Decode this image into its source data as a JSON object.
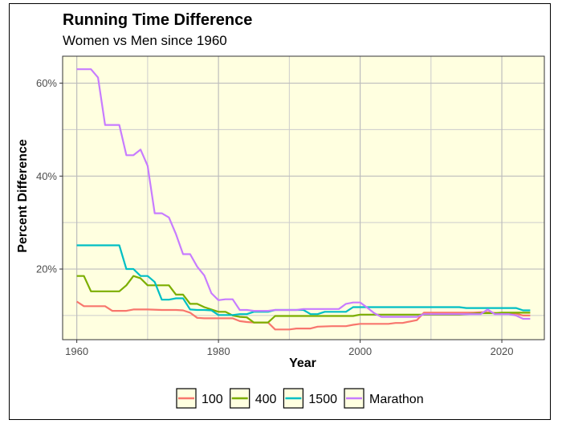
{
  "chart_data": {
    "type": "line",
    "title": "Running Time Difference",
    "subtitle": "Women vs Men since 1960",
    "xlabel": "Year",
    "ylabel": "Percent Difference",
    "xlim": [
      1958,
      2026
    ],
    "ylim": [
      0.048,
      0.658
    ],
    "x_ticks": [
      1960,
      1980,
      2000,
      2020
    ],
    "y_ticks": [
      0.2,
      0.4,
      0.6
    ],
    "y_tick_labels": [
      "20%",
      "40%",
      "60%"
    ],
    "y_minor_ticks": [
      0.1,
      0.3,
      0.5
    ],
    "panel_background": "#ffffe0",
    "grid": true,
    "legend_position": "bottom",
    "series": [
      {
        "name": "100",
        "color": "#f8766d",
        "points": [
          [
            1960,
            0.13
          ],
          [
            1961,
            0.12
          ],
          [
            1962,
            0.12
          ],
          [
            1963,
            0.12
          ],
          [
            1964,
            0.12
          ],
          [
            1965,
            0.11
          ],
          [
            1966,
            0.11
          ],
          [
            1967,
            0.11
          ],
          [
            1968,
            0.113
          ],
          [
            1969,
            0.113
          ],
          [
            1970,
            0.113
          ],
          [
            1972,
            0.112
          ],
          [
            1974,
            0.112
          ],
          [
            1975,
            0.111
          ],
          [
            1976,
            0.106
          ],
          [
            1977,
            0.095
          ],
          [
            1978,
            0.094
          ],
          [
            1980,
            0.094
          ],
          [
            1982,
            0.094
          ],
          [
            1983,
            0.088
          ],
          [
            1984,
            0.086
          ],
          [
            1985,
            0.085
          ],
          [
            1986,
            0.085
          ],
          [
            1987,
            0.085
          ],
          [
            1988,
            0.07
          ],
          [
            1990,
            0.07
          ],
          [
            1991,
            0.072
          ],
          [
            1993,
            0.072
          ],
          [
            1994,
            0.076
          ],
          [
            1996,
            0.077
          ],
          [
            1998,
            0.077
          ],
          [
            1999,
            0.08
          ],
          [
            2000,
            0.082
          ],
          [
            2004,
            0.082
          ],
          [
            2005,
            0.084
          ],
          [
            2006,
            0.084
          ],
          [
            2007,
            0.087
          ],
          [
            2008,
            0.09
          ],
          [
            2009,
            0.106
          ],
          [
            2010,
            0.106
          ],
          [
            2014,
            0.106
          ],
          [
            2016,
            0.106
          ],
          [
            2017,
            0.107
          ],
          [
            2018,
            0.107
          ],
          [
            2020,
            0.104
          ],
          [
            2022,
            0.104
          ],
          [
            2023,
            0.1
          ],
          [
            2024,
            0.1
          ]
        ]
      },
      {
        "name": "400",
        "color": "#7cae00",
        "points": [
          [
            1960,
            0.185
          ],
          [
            1961,
            0.185
          ],
          [
            1962,
            0.152
          ],
          [
            1963,
            0.152
          ],
          [
            1966,
            0.152
          ],
          [
            1967,
            0.165
          ],
          [
            1968,
            0.185
          ],
          [
            1969,
            0.18
          ],
          [
            1970,
            0.165
          ],
          [
            1973,
            0.165
          ],
          [
            1974,
            0.145
          ],
          [
            1975,
            0.145
          ],
          [
            1976,
            0.125
          ],
          [
            1977,
            0.125
          ],
          [
            1978,
            0.118
          ],
          [
            1979,
            0.113
          ],
          [
            1980,
            0.108
          ],
          [
            1981,
            0.108
          ],
          [
            1982,
            0.1
          ],
          [
            1983,
            0.097
          ],
          [
            1984,
            0.096
          ],
          [
            1985,
            0.085
          ],
          [
            1987,
            0.085
          ],
          [
            1988,
            0.099
          ],
          [
            1990,
            0.099
          ],
          [
            1995,
            0.099
          ],
          [
            1999,
            0.099
          ],
          [
            2000,
            0.102
          ],
          [
            2004,
            0.102
          ],
          [
            2010,
            0.102
          ],
          [
            2014,
            0.102
          ],
          [
            2017,
            0.105
          ],
          [
            2019,
            0.105
          ],
          [
            2020,
            0.106
          ],
          [
            2024,
            0.106
          ]
        ]
      },
      {
        "name": "1500",
        "color": "#00bfc4",
        "points": [
          [
            1960,
            0.251
          ],
          [
            1966,
            0.251
          ],
          [
            1967,
            0.2
          ],
          [
            1968,
            0.2
          ],
          [
            1969,
            0.185
          ],
          [
            1970,
            0.185
          ],
          [
            1971,
            0.172
          ],
          [
            1972,
            0.134
          ],
          [
            1973,
            0.134
          ],
          [
            1974,
            0.137
          ],
          [
            1975,
            0.137
          ],
          [
            1976,
            0.113
          ],
          [
            1977,
            0.112
          ],
          [
            1978,
            0.112
          ],
          [
            1979,
            0.111
          ],
          [
            1980,
            0.101
          ],
          [
            1982,
            0.101
          ],
          [
            1983,
            0.103
          ],
          [
            1984,
            0.103
          ],
          [
            1985,
            0.108
          ],
          [
            1987,
            0.108
          ],
          [
            1988,
            0.112
          ],
          [
            1992,
            0.112
          ],
          [
            1993,
            0.103
          ],
          [
            1994,
            0.103
          ],
          [
            1995,
            0.108
          ],
          [
            1998,
            0.108
          ],
          [
            1999,
            0.118
          ],
          [
            2000,
            0.118
          ],
          [
            2005,
            0.118
          ],
          [
            2010,
            0.118
          ],
          [
            2014,
            0.118
          ],
          [
            2015,
            0.116
          ],
          [
            2019,
            0.116
          ],
          [
            2022,
            0.116
          ],
          [
            2023,
            0.111
          ],
          [
            2024,
            0.111
          ]
        ]
      },
      {
        "name": "Marathon",
        "color": "#c77cff",
        "points": [
          [
            1960,
            0.63
          ],
          [
            1962,
            0.63
          ],
          [
            1963,
            0.612
          ],
          [
            1964,
            0.51
          ],
          [
            1966,
            0.51
          ],
          [
            1967,
            0.445
          ],
          [
            1968,
            0.445
          ],
          [
            1969,
            0.457
          ],
          [
            1970,
            0.422
          ],
          [
            1971,
            0.32
          ],
          [
            1972,
            0.32
          ],
          [
            1973,
            0.311
          ],
          [
            1974,
            0.275
          ],
          [
            1975,
            0.232
          ],
          [
            1976,
            0.232
          ],
          [
            1977,
            0.205
          ],
          [
            1978,
            0.186
          ],
          [
            1979,
            0.148
          ],
          [
            1980,
            0.133
          ],
          [
            1981,
            0.135
          ],
          [
            1982,
            0.135
          ],
          [
            1983,
            0.112
          ],
          [
            1984,
            0.112
          ],
          [
            1985,
            0.11
          ],
          [
            1987,
            0.11
          ],
          [
            1988,
            0.112
          ],
          [
            1990,
            0.112
          ],
          [
            1991,
            0.112
          ],
          [
            1992,
            0.114
          ],
          [
            1997,
            0.114
          ],
          [
            1998,
            0.125
          ],
          [
            1999,
            0.128
          ],
          [
            2000,
            0.128
          ],
          [
            2001,
            0.117
          ],
          [
            2002,
            0.105
          ],
          [
            2003,
            0.097
          ],
          [
            2008,
            0.097
          ],
          [
            2009,
            0.103
          ],
          [
            2010,
            0.103
          ],
          [
            2016,
            0.103
          ],
          [
            2017,
            0.103
          ],
          [
            2018,
            0.113
          ],
          [
            2019,
            0.103
          ],
          [
            2020,
            0.103
          ],
          [
            2021,
            0.103
          ],
          [
            2022,
            0.1
          ],
          [
            2023,
            0.093
          ],
          [
            2024,
            0.093
          ]
        ]
      }
    ]
  }
}
